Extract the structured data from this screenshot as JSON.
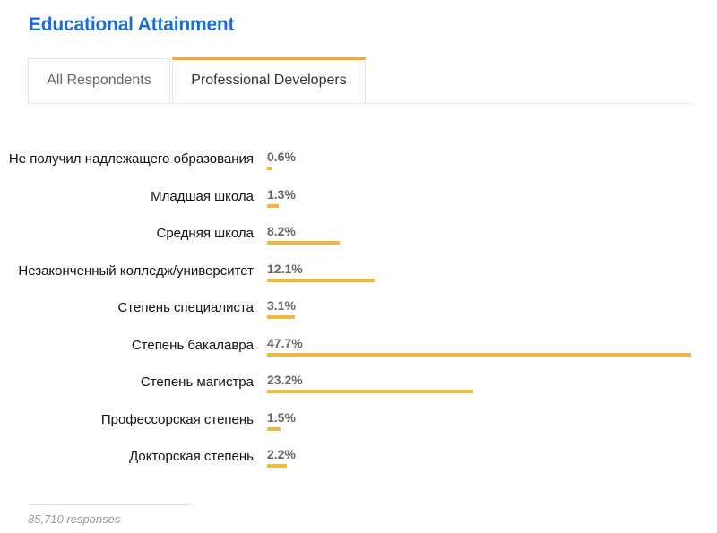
{
  "title": "Educational Attainment",
  "tabs": [
    {
      "label": "All Respondents",
      "active": false
    },
    {
      "label": "Professional Developers",
      "active": true
    }
  ],
  "footer": "85,710 responses",
  "colors": {
    "bar": "#f0b83c",
    "title": "#1a6fd1",
    "active_tab_accent": "#f0a83a"
  },
  "chart_data": {
    "type": "bar",
    "orientation": "horizontal",
    "title": "",
    "xlabel": "",
    "ylabel": "",
    "categories": [
      "Не получил надлежащего образования",
      "Младшая школа",
      "Средняя школа",
      "Незаконченный колледж/университет",
      "Степень специалиста",
      "Степень бакалавра",
      "Степень магистра",
      "Профессорская степень",
      "Докторская степень"
    ],
    "values": [
      0.6,
      1.3,
      8.2,
      12.1,
      3.1,
      47.7,
      23.2,
      1.5,
      2.2
    ],
    "value_labels": [
      "0.6%",
      "1.3%",
      "8.2%",
      "12.1%",
      "3.1%",
      "47.7%",
      "23.2%",
      "1.5%",
      "2.2%"
    ],
    "unit": "%",
    "xlim": [
      0,
      47.7
    ],
    "grid": false,
    "legend": "none"
  }
}
